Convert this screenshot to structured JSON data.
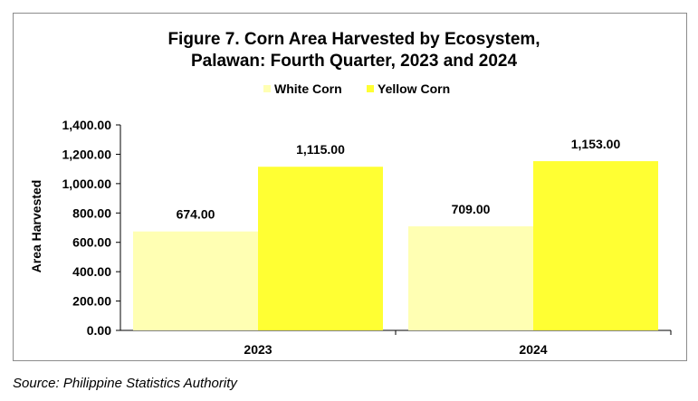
{
  "chart_data": {
    "type": "bar",
    "title_lines": [
      "Figure 7. Corn Area Harvested by Ecosystem,",
      "Palawan:  Fourth Quarter, 2023 and 2024"
    ],
    "ylabel": "Area Harvested",
    "xlabel": "",
    "categories": [
      "2023",
      "2024"
    ],
    "series": [
      {
        "name": "White Corn",
        "color": "#FFFFB3",
        "values": [
          674.0,
          709.0
        ],
        "labels": [
          "674.00",
          "709.00"
        ]
      },
      {
        "name": "Yellow Corn",
        "color": "#FFFF33",
        "values": [
          1115.0,
          1153.0
        ],
        "labels": [
          "1,115.00",
          "1,153.00"
        ]
      }
    ],
    "ylim": [
      0,
      1400
    ],
    "yticks": [
      0,
      200,
      400,
      600,
      800,
      1000,
      1200,
      1400
    ],
    "ytick_labels": [
      "0.00",
      "200.00",
      "400.00",
      "600.00",
      "800.00",
      "1,000.00",
      "1,200.00",
      "1,400.00"
    ],
    "legend_position": "top",
    "grid": false
  },
  "source": "Source: Philippine Statistics Authority"
}
